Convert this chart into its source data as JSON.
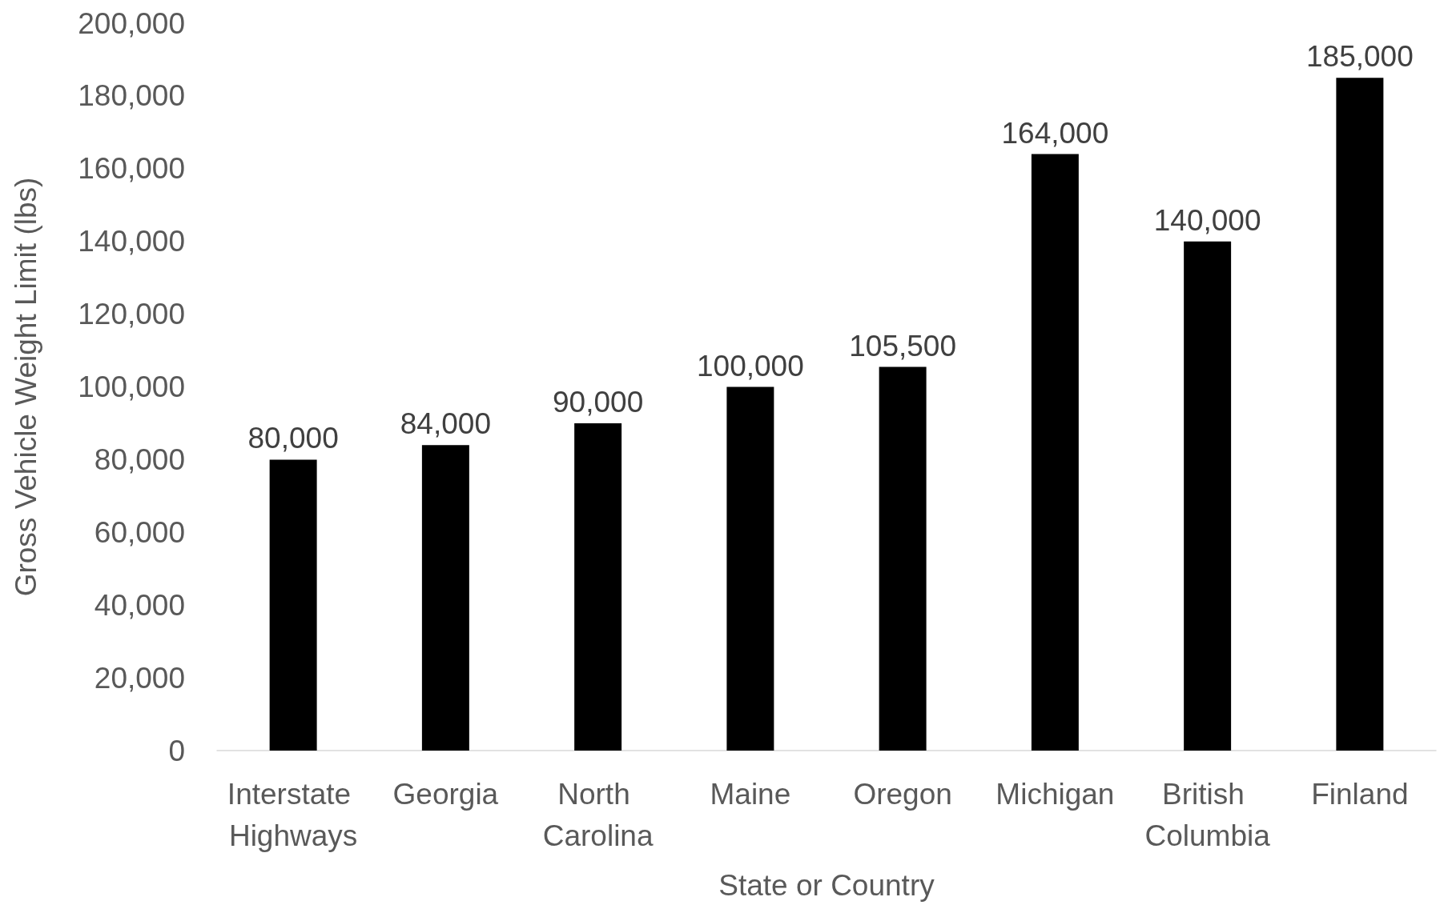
{
  "chart_data": {
    "type": "bar",
    "xlabel": "State or Country",
    "ylabel": "Gross Vehicle Weight Limit (lbs)",
    "categories": [
      "Interstate Highways",
      "Georgia",
      "North Carolina",
      "Maine",
      "Oregon",
      "Michigan",
      "British Columbia",
      "Finland"
    ],
    "values": [
      80000,
      84000,
      90000,
      100000,
      105500,
      164000,
      140000,
      185000
    ],
    "value_labels": [
      "80,000",
      "84,000",
      "90,000",
      "100,000",
      "105,500",
      "164,000",
      "140,000",
      "185,000"
    ],
    "color": "#000000",
    "ylim": [
      0,
      200000
    ],
    "yticks": [
      0,
      {
        "value": 20000,
        "label": "20,000"
      },
      {
        "value": 40000,
        "label": "40,000"
      },
      {
        "value": 60000,
        "label": "60,000"
      },
      {
        "value": 80000,
        "label": "80,000"
      },
      {
        "value": 100000,
        "label": "100,000"
      },
      {
        "value": 120000,
        "label": "120,000"
      },
      {
        "value": 140000,
        "label": "140,000"
      },
      {
        "value": 160000,
        "label": "160,000"
      },
      {
        "value": 180000,
        "label": "180,000"
      },
      {
        "value": 200000,
        "label": "200,000"
      }
    ],
    "grid": false
  }
}
